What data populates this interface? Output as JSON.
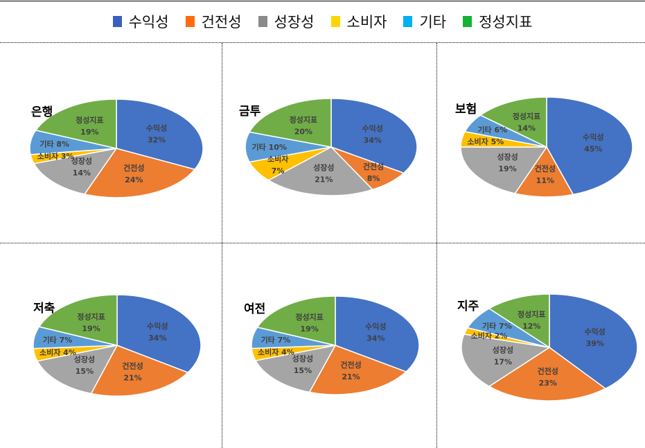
{
  "legend": {
    "items": [
      {
        "label": "수익성",
        "color": "#3a5fbf"
      },
      {
        "label": "건전성",
        "color": "#ff6a10"
      },
      {
        "label": "성장성",
        "color": "#8a8a8a"
      },
      {
        "label": "소비자",
        "color": "#ffd400"
      },
      {
        "label": "기타",
        "color": "#00b0f0"
      },
      {
        "label": "정성지표",
        "color": "#16b233"
      }
    ]
  },
  "slice_colors": {
    "수익성": "#4472c4",
    "건전성": "#ed7d31",
    "성장성": "#a5a5a5",
    "소비자": "#ffc000",
    "기타": "#5b9bd5",
    "정성지표": "#70ad47"
  },
  "chart_data": [
    {
      "type": "pie",
      "title": "은행",
      "categories": [
        "수익성",
        "건전성",
        "성장성",
        "소비자",
        "기타",
        "정성지표"
      ],
      "values": [
        32,
        24,
        14,
        3,
        8,
        19
      ],
      "labels": [
        "수익성\n32%",
        "건전성\n24%",
        "성장성\n14%",
        "소비자 3%",
        "기타 8%",
        "정성지표\n19%"
      ]
    },
    {
      "type": "pie",
      "title": "금투",
      "categories": [
        "수익성",
        "건전성",
        "성장성",
        "소비자",
        "기타",
        "정성지표"
      ],
      "values": [
        34,
        8,
        21,
        7,
        10,
        20
      ],
      "labels": [
        "수익성\n34%",
        "건전성\n8%",
        "성장성\n21%",
        "소비자\n7%",
        "기타 10%",
        "정성지표\n20%"
      ]
    },
    {
      "type": "pie",
      "title": "보험",
      "categories": [
        "수익성",
        "건전성",
        "성장성",
        "소비자",
        "기타",
        "정성지표"
      ],
      "values": [
        45,
        11,
        19,
        5,
        6,
        14
      ],
      "labels": [
        "수익성\n45%",
        "건전성\n11%",
        "성장성\n19%",
        "소비자 5%",
        "기타 6%",
        "정성지표\n14%"
      ]
    },
    {
      "type": "pie",
      "title": "저축",
      "categories": [
        "수익성",
        "건전성",
        "성장성",
        "소비자",
        "기타",
        "정성지표"
      ],
      "values": [
        34,
        21,
        15,
        4,
        7,
        19
      ],
      "labels": [
        "수익성\n34%",
        "건전성\n21%",
        "성장성\n15%",
        "소비자 4%",
        "기타 7%",
        "정성지표\n19%"
      ]
    },
    {
      "type": "pie",
      "title": "여전",
      "categories": [
        "수익성",
        "건전성",
        "성장성",
        "소비자",
        "기타",
        "정성지표"
      ],
      "values": [
        34,
        21,
        15,
        4,
        7,
        19
      ],
      "labels": [
        "수익성\n34%",
        "건전성\n21%",
        "성장성\n15%",
        "소비자 4%",
        "기타 7%",
        "정성지표\n19%"
      ]
    },
    {
      "type": "pie",
      "title": "지주",
      "categories": [
        "수익성",
        "건전성",
        "성장성",
        "소비자",
        "기타",
        "정성지표"
      ],
      "values": [
        39,
        23,
        17,
        2,
        7,
        12
      ],
      "labels": [
        "수익성\n39%",
        "건전성\n23%",
        "성장성\n17%",
        "소비자 2%",
        "기타 7%",
        "정성지표\n12%"
      ]
    }
  ]
}
